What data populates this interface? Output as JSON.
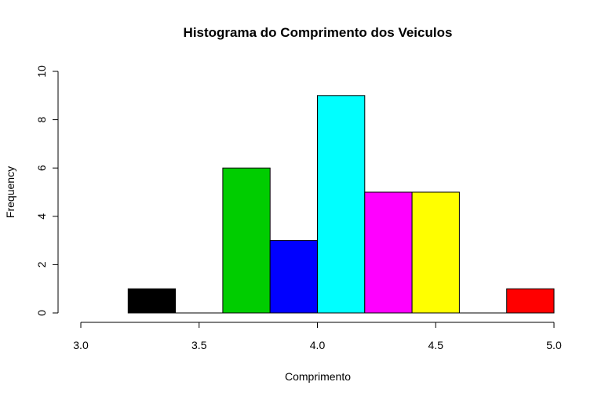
{
  "chart_data": {
    "type": "histogram",
    "title": "Histograma do Comprimento dos Veiculos",
    "xlabel": "Comprimento",
    "ylabel": "Frequency",
    "bins": [
      {
        "start": 3.2,
        "end": 3.4,
        "count": 1,
        "color": "#000000"
      },
      {
        "start": 3.4,
        "end": 3.6,
        "count": 0,
        "color": "#000000"
      },
      {
        "start": 3.6,
        "end": 3.8,
        "count": 6,
        "color": "#00CD00"
      },
      {
        "start": 3.8,
        "end": 4.0,
        "count": 3,
        "color": "#0000FF"
      },
      {
        "start": 4.0,
        "end": 4.2,
        "count": 9,
        "color": "#00FFFF"
      },
      {
        "start": 4.2,
        "end": 4.4,
        "count": 5,
        "color": "#FF00FF"
      },
      {
        "start": 4.4,
        "end": 4.6,
        "count": 5,
        "color": "#FFFF00"
      },
      {
        "start": 4.6,
        "end": 4.8,
        "count": 0,
        "color": "#808080"
      },
      {
        "start": 4.8,
        "end": 5.0,
        "count": 1,
        "color": "#FF0000"
      }
    ],
    "x_ticks": [
      "3.0",
      "3.5",
      "4.0",
      "4.5",
      "5.0"
    ],
    "y_ticks": [
      "0",
      "2",
      "4",
      "6",
      "8",
      "10"
    ],
    "xlim": [
      3.0,
      5.0
    ],
    "ylim": [
      0,
      10
    ],
    "grid": false,
    "legend": "none"
  }
}
